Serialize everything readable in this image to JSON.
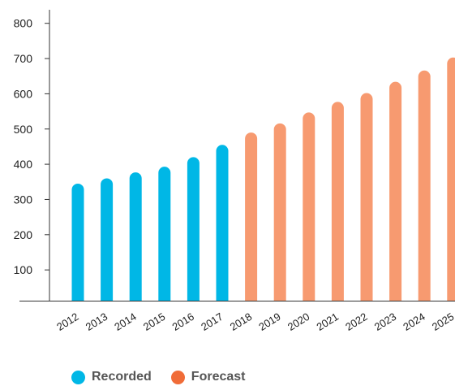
{
  "chart_data": {
    "type": "bar",
    "categories": [
      "2012",
      "2013",
      "2014",
      "2015",
      "2016",
      "2017",
      "2018",
      "2019",
      "2020",
      "2021",
      "2022",
      "2023",
      "2024",
      "2025"
    ],
    "values": [
      345,
      360,
      377,
      393,
      420,
      455,
      490,
      516,
      547,
      577,
      602,
      634,
      666,
      703
    ],
    "kinds": [
      "recorded",
      "recorded",
      "recorded",
      "recorded",
      "recorded",
      "recorded",
      "forecast",
      "forecast",
      "forecast",
      "forecast",
      "forecast",
      "forecast",
      "forecast",
      "forecast"
    ],
    "y_ticks": [
      100,
      200,
      300,
      400,
      500,
      600,
      700,
      800
    ],
    "ylim": [
      0,
      830
    ],
    "grid": false,
    "legend_position": "bottom-left",
    "series": [
      {
        "name": "Recorded",
        "color": "#00b7e6"
      },
      {
        "name": "Forecast",
        "color": "#f79a70"
      }
    ]
  },
  "legend": {
    "recorded_label": "Recorded",
    "forecast_label": "Forecast",
    "recorded_swatch": "#00b7e6",
    "forecast_swatch": "#f06c38"
  }
}
